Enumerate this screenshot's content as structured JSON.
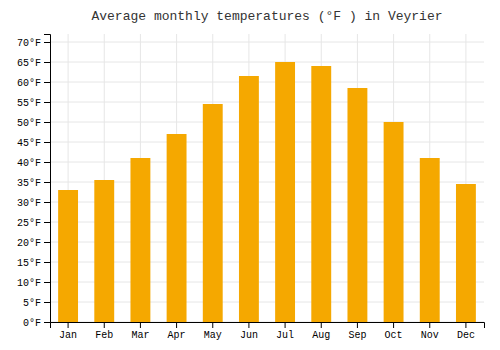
{
  "chart_data": {
    "type": "bar",
    "title": "Average monthly temperatures (°F ) in Veyrier",
    "categories": [
      "Jan",
      "Feb",
      "Mar",
      "Apr",
      "May",
      "Jun",
      "Jul",
      "Aug",
      "Sep",
      "Oct",
      "Nov",
      "Dec"
    ],
    "values": [
      33,
      35.5,
      41,
      47,
      54.5,
      61.5,
      65,
      64,
      58.5,
      50,
      41,
      34.5
    ],
    "color": "#F5A800",
    "ylim": [
      0,
      72
    ],
    "yticks": [
      {
        "value": 0,
        "label": "0°F"
      },
      {
        "value": 5,
        "label": "5°F"
      },
      {
        "value": 10,
        "label": "10°F"
      },
      {
        "value": 15,
        "label": "15°F"
      },
      {
        "value": 20,
        "label": "20°F"
      },
      {
        "value": 25,
        "label": "25°F"
      },
      {
        "value": 30,
        "label": "30°F"
      },
      {
        "value": 35,
        "label": "35°F"
      },
      {
        "value": 40,
        "label": "40°F"
      },
      {
        "value": 45,
        "label": "45°F"
      },
      {
        "value": 50,
        "label": "50°F"
      },
      {
        "value": 55,
        "label": "55°F"
      },
      {
        "value": 60,
        "label": "60°F"
      },
      {
        "value": 65,
        "label": "65°F"
      },
      {
        "value": 70,
        "label": "70°F"
      }
    ],
    "grid": true
  }
}
